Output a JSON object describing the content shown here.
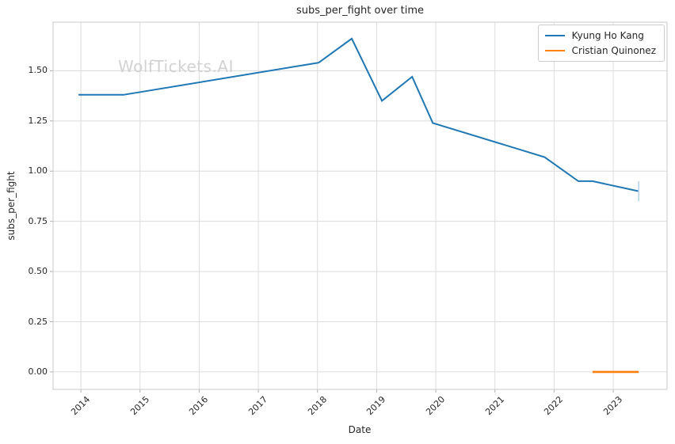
{
  "title": "subs_per_fight over time",
  "watermark": "WolfTickets.AI",
  "xlabel": "Date",
  "ylabel": "subs_per_fight",
  "legend": [
    {
      "label": "Kyung Ho Kang",
      "color": "#1f77b4"
    },
    {
      "label": "Cristian Quinonez",
      "color": "#ff7f0e"
    }
  ],
  "colors": {
    "series_blue": "#1f77b4",
    "series_orange": "#ff7f0e",
    "error_cap_blue": "#b8d4ea",
    "grid": "#dcdcdc",
    "spine": "#c8c8c8",
    "tick_mark": "#b0b0b0",
    "text": "#262626",
    "watermark": "#d2d2d2"
  },
  "chart_data": {
    "type": "line",
    "title": "subs_per_fight over time",
    "xlabel": "Date",
    "ylabel": "subs_per_fight",
    "xlim": [
      2013.53,
      2023.91
    ],
    "ylim": [
      -0.087,
      1.742
    ],
    "grid": true,
    "legend_position": "upper right",
    "x_ticks": {
      "values": [
        2014,
        2015,
        2016,
        2017,
        2018,
        2019,
        2020,
        2021,
        2022,
        2023
      ],
      "labels": [
        "2014",
        "2015",
        "2016",
        "2017",
        "2018",
        "2019",
        "2020",
        "2021",
        "2022",
        "2023"
      ]
    },
    "y_ticks": {
      "values": [
        0.0,
        0.25,
        0.5,
        0.75,
        1.0,
        1.25,
        1.5
      ],
      "labels": [
        "0.00",
        "0.25",
        "0.50",
        "0.75",
        "1.00",
        "1.25",
        "1.50"
      ]
    },
    "series": [
      {
        "name": "Kyung Ho Kang",
        "color": "#1f77b4",
        "line_width": 2,
        "x": [
          2013.96,
          2014.72,
          2018.02,
          2018.58,
          2019.09,
          2019.6,
          2019.95,
          2021.84,
          2022.41,
          2022.65,
          2023.43
        ],
        "y": [
          1.38,
          1.38,
          1.54,
          1.66,
          1.35,
          1.47,
          1.24,
          1.07,
          0.95,
          0.95,
          0.9
        ],
        "end_cap": {
          "x": 2023.43,
          "y_low": 0.85,
          "y_high": 0.95,
          "color": "#b8d4ea",
          "line_width": 1.6
        }
      },
      {
        "name": "Cristian Quinonez",
        "color": "#ff7f0e",
        "line_width": 2.6,
        "x": [
          2022.65,
          2023.43
        ],
        "y": [
          0.0,
          0.0
        ]
      }
    ]
  }
}
